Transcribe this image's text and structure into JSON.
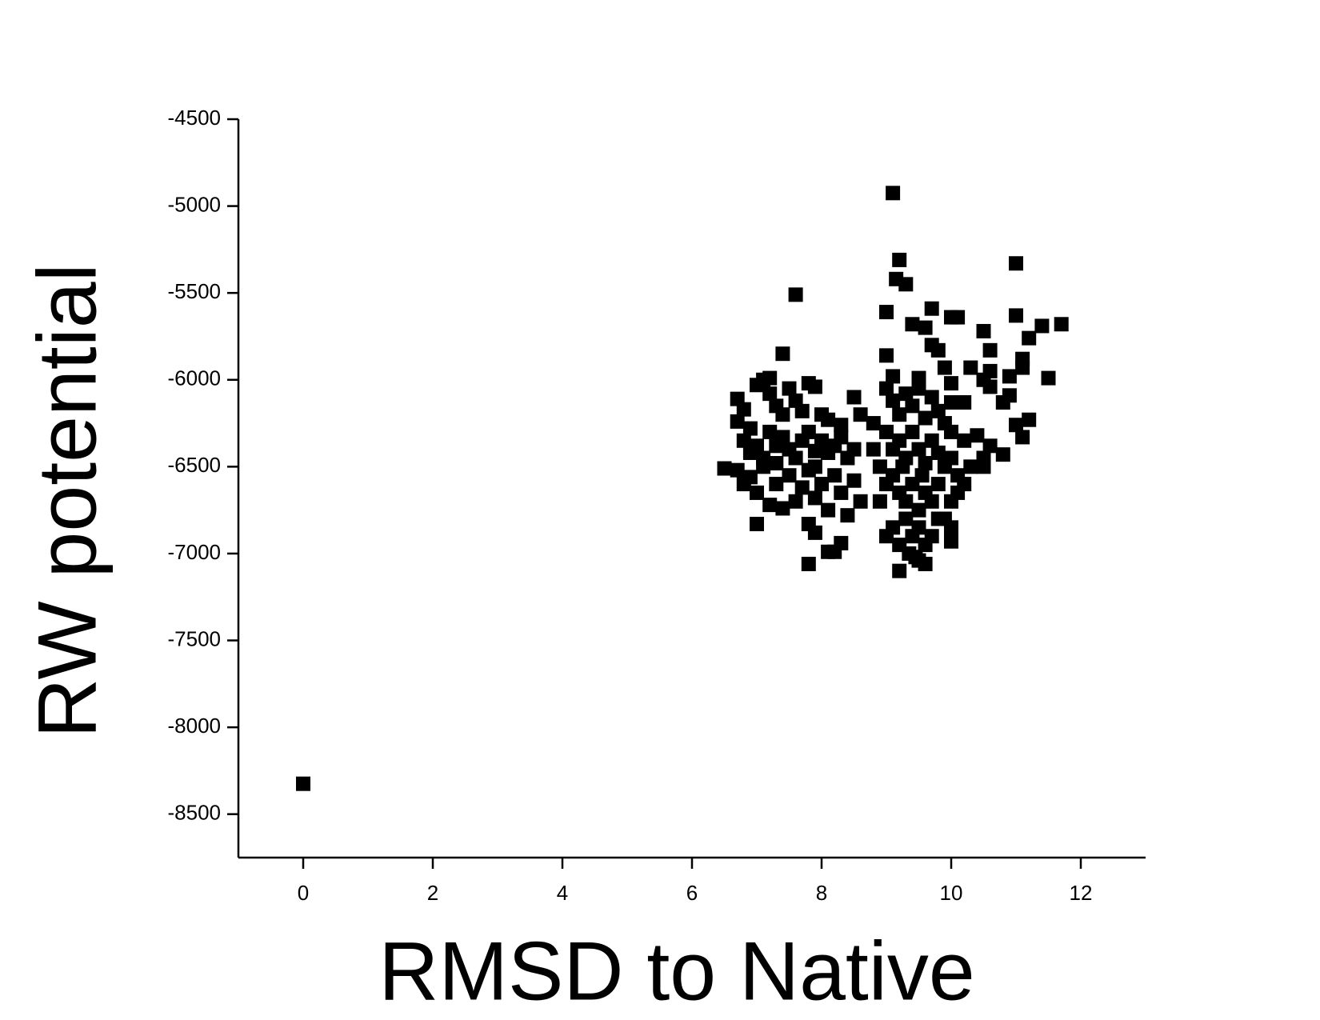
{
  "chart_data": {
    "type": "scatter",
    "x_label": "RMSD to Native",
    "y_label": "RW potential",
    "xlim": [
      -1,
      13
    ],
    "xticks": [
      0,
      2,
      4,
      6,
      8,
      10,
      12
    ],
    "ylim": [
      -8750,
      -4500
    ],
    "yticks": [
      -8500,
      -8000,
      -7500,
      -7000,
      -6500,
      -6000,
      -5500,
      -5000,
      -4500
    ],
    "color": "#000000",
    "marker": "square",
    "x": [
      0,
      9.1,
      9.2,
      11.0,
      9.15,
      9.3,
      7.6,
      9.0,
      9.7,
      10.0,
      10.1,
      11.0,
      10.5,
      11.4,
      11.7,
      9.4,
      9.6,
      11.2,
      9.7,
      9.8,
      7.4,
      9.0,
      11.1,
      10.6,
      11.1,
      10.3,
      10.6,
      10.9,
      11.5,
      9.1,
      9.5,
      10.5,
      9.9,
      10.6,
      10.0,
      7.0,
      7.8,
      7.9,
      7.8,
      8.1,
      8.2,
      8.3,
      9.2,
      9.6,
      9.5,
      10.0,
      11.0,
      11.2,
      11.1,
      10.8,
      10.5,
      6.5,
      10.8,
      10.9,
      10.0,
      10.2,
      6.7,
      6.8,
      6.7,
      6.9,
      7.0,
      7.1,
      7.2,
      7.2,
      7.3,
      7.4,
      7.5,
      7.6,
      7.7,
      7.8,
      7.9,
      8.0,
      8.1,
      8.3,
      8.5,
      8.6,
      6.8,
      6.9,
      7.0,
      7.1,
      7.2,
      7.3,
      7.4,
      7.5,
      7.6,
      7.7,
      7.8,
      7.9,
      8.0,
      8.1,
      8.2,
      8.3,
      8.4,
      8.5,
      6.7,
      6.8,
      6.9,
      7.0,
      7.1,
      7.2,
      7.3,
      7.4,
      7.5,
      7.6,
      7.7,
      7.8,
      7.9,
      8.0,
      8.1,
      8.2,
      8.3,
      8.4,
      8.5,
      8.6,
      7.3,
      7.9,
      9.0,
      9.1,
      9.2,
      9.3,
      9.4,
      9.5,
      9.6,
      9.7,
      9.8,
      9.9,
      10.0,
      10.2,
      10.4,
      10.6,
      9.0,
      9.1,
      9.2,
      9.3,
      9.4,
      9.5,
      9.6,
      9.7,
      9.8,
      9.9,
      10.0,
      10.1,
      10.3,
      10.5,
      8.9,
      9.0,
      9.1,
      9.2,
      9.3,
      9.4,
      9.5,
      9.6,
      9.7,
      9.8,
      9.9,
      10.0,
      10.1,
      10.2,
      9.0,
      9.1,
      9.2,
      9.3,
      9.4,
      9.5,
      9.6,
      9.7,
      9.8,
      10.0,
      8.8,
      8.8,
      8.9,
      9.35,
      9.45,
      9.25,
      9.55
    ],
    "values": [
      -8325,
      -4925,
      -5310,
      -5330,
      -5420,
      -5450,
      -5510,
      -5610,
      -5590,
      -5640,
      -5640,
      -5630,
      -5720,
      -5690,
      -5680,
      -5680,
      -5700,
      -5760,
      -5800,
      -5830,
      -5850,
      -5860,
      -5880,
      -5830,
      -5930,
      -5930,
      -5950,
      -5980,
      -5990,
      -5980,
      -5990,
      -6000,
      -5930,
      -6040,
      -6020,
      -6830,
      -6830,
      -6880,
      -7060,
      -6990,
      -6990,
      -6940,
      -7100,
      -7060,
      -7040,
      -6930,
      -6260,
      -6230,
      -6330,
      -6430,
      -6500,
      -6510,
      -6130,
      -6090,
      -6130,
      -6130,
      -6110,
      -6170,
      -6240,
      -6280,
      -6030,
      -6000,
      -5990,
      -6080,
      -6150,
      -6200,
      -6050,
      -6120,
      -6180,
      -6020,
      -6040,
      -6200,
      -6230,
      -6260,
      -6100,
      -6200,
      -6350,
      -6420,
      -6380,
      -6450,
      -6300,
      -6380,
      -6330,
      -6400,
      -6450,
      -6350,
      -6300,
      -6410,
      -6350,
      -6420,
      -6380,
      -6330,
      -6450,
      -6400,
      -6520,
      -6600,
      -6560,
      -6650,
      -6500,
      -6720,
      -6600,
      -6740,
      -6550,
      -6700,
      -6620,
      -6520,
      -6680,
      -6600,
      -6750,
      -6550,
      -6650,
      -6780,
      -6580,
      -6700,
      -6480,
      -6500,
      -6050,
      -6120,
      -6200,
      -6080,
      -6150,
      -6050,
      -6220,
      -6100,
      -6180,
      -6250,
      -6300,
      -6350,
      -6320,
      -6380,
      -6300,
      -6400,
      -6350,
      -6450,
      -6300,
      -6400,
      -6480,
      -6350,
      -6420,
      -6500,
      -6450,
      -6550,
      -6500,
      -6450,
      -6500,
      -6600,
      -6550,
      -6650,
      -6700,
      -6600,
      -6750,
      -6650,
      -6700,
      -6600,
      -6800,
      -6700,
      -6650,
      -6600,
      -6900,
      -6850,
      -6950,
      -6800,
      -6900,
      -6850,
      -6950,
      -6900,
      -6800,
      -6850,
      -6400,
      -6250,
      -6700,
      -7000,
      -7020,
      -6500,
      -6550
    ]
  }
}
